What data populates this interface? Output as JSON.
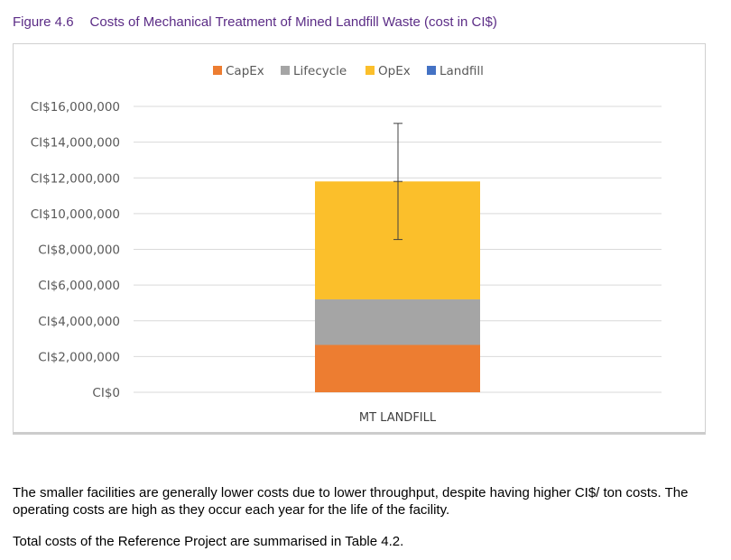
{
  "figure": {
    "number": "Figure 4.6",
    "title": "Costs of Mechanical Treatment of Mined Landfill Waste (cost in CI$)"
  },
  "chart_data": {
    "type": "bar",
    "stacked": true,
    "categories": [
      "MT LANDFILL"
    ],
    "series": [
      {
        "name": "CapEx",
        "values": [
          2650000
        ],
        "color": "#ED7D31"
      },
      {
        "name": "Lifecycle",
        "values": [
          2550000
        ],
        "color": "#A5A5A5"
      },
      {
        "name": "OpEx",
        "values": [
          6600000
        ],
        "color": "#FBBF2B"
      },
      {
        "name": "Landfill",
        "values": [
          0
        ],
        "color": "#4472C4"
      }
    ],
    "error_bar": {
      "center": 11800000,
      "low": 8550000,
      "high": 15050000
    },
    "ylim": [
      0,
      16000000
    ],
    "yticks": [
      0,
      2000000,
      4000000,
      6000000,
      8000000,
      10000000,
      12000000,
      14000000,
      16000000
    ],
    "ytick_labels": [
      "CI$0",
      "CI$2,000,000",
      "CI$4,000,000",
      "CI$6,000,000",
      "CI$8,000,000",
      "CI$10,000,000",
      "CI$12,000,000",
      "CI$14,000,000",
      "CI$16,000,000"
    ],
    "legend_position": "top",
    "grid": true
  },
  "text": {
    "p1": "The smaller facilities are generally lower costs due to lower throughput, despite having higher CI$/ ton costs. The operating costs are high as they occur each year for the life of the facility.",
    "p2": "Total costs of the Reference Project are summarised in Table 4.2."
  }
}
